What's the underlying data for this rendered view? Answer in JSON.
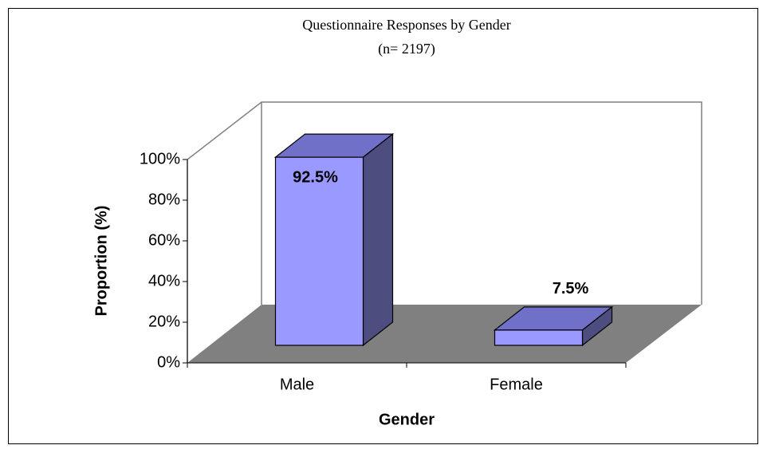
{
  "chart_data": {
    "type": "bar3d",
    "title": "Questionnaire Responses by Gender",
    "subtitle": "(n= 2197)",
    "categories": [
      "Male",
      "Female"
    ],
    "values": [
      92.5,
      7.5
    ],
    "value_labels": [
      "92.5%",
      "7.5%"
    ],
    "color": "#9999ff",
    "ylim": [
      0,
      100
    ],
    "yticks": [
      {
        "value": 0,
        "label": "0%"
      },
      {
        "value": 20,
        "label": "20%"
      },
      {
        "value": 40,
        "label": "40%"
      },
      {
        "value": 60,
        "label": "60%"
      },
      {
        "value": 80,
        "label": "80%"
      },
      {
        "value": 100,
        "label": "100%"
      }
    ],
    "y_label": "Proportion (%)",
    "x_label": "Gender",
    "grid": false
  }
}
